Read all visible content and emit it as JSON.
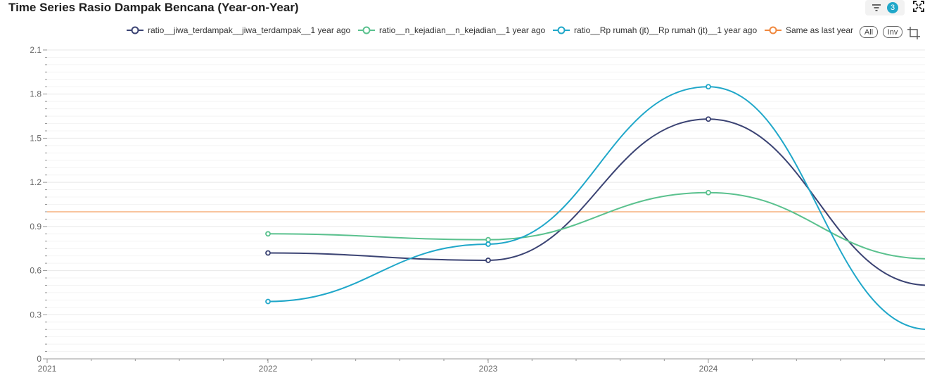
{
  "header": {
    "title": "Time Series Rasio Dampak Bencana (Year-on-Year)",
    "filter_count": "3"
  },
  "legend_controls": {
    "all_label": "All",
    "inv_label": "Inv"
  },
  "colors": {
    "series1": "#3b4373",
    "series2": "#5ac18e",
    "series3": "#20a7c9",
    "baseline": "#f0883e",
    "grid": "#e8e8e8"
  },
  "chart_data": {
    "type": "line",
    "title": "Time Series Rasio Dampak Bencana (Year-on-Year)",
    "xlabel": "",
    "ylabel": "",
    "x_ticks": [
      "2021",
      "2022",
      "2023",
      "2024"
    ],
    "y_ticks": [
      "0",
      "0.3",
      "0.6",
      "0.9",
      "1.2",
      "1.5",
      "1.8",
      "2.1"
    ],
    "ylim": [
      0,
      2.1
    ],
    "grid": true,
    "legend_position": "top",
    "series": [
      {
        "name": "ratio__jiwa_terdampak__jiwa_terdampak__1 year ago",
        "x": [
          "2022",
          "2023",
          "2024",
          "2025"
        ],
        "values": [
          0.72,
          0.67,
          1.63,
          0.5
        ],
        "markers": [
          true,
          true,
          true,
          false
        ]
      },
      {
        "name": "ratio__n_kejadian__n_kejadian__1 year ago",
        "x": [
          "2022",
          "2023",
          "2024",
          "2025"
        ],
        "values": [
          0.85,
          0.81,
          1.13,
          0.68
        ],
        "markers": [
          true,
          true,
          true,
          false
        ]
      },
      {
        "name": "ratio__Rp rumah (jt)__Rp rumah (jt)__1 year ago",
        "x": [
          "2022",
          "2023",
          "2024",
          "2025"
        ],
        "values": [
          0.39,
          0.78,
          1.85,
          0.2
        ],
        "markers": [
          true,
          true,
          true,
          false
        ]
      }
    ],
    "reference_lines": [
      {
        "name": "Same as last year",
        "y": 1.0
      }
    ]
  }
}
